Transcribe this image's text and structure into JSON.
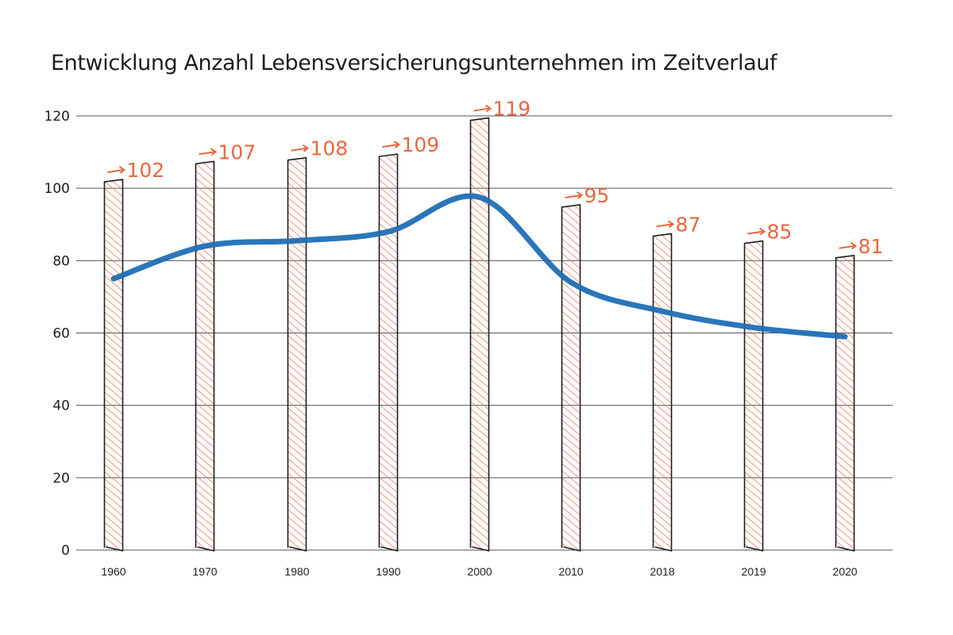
{
  "colors": {
    "bar_hatch": "#ee7a5c",
    "bar_outline": "#1e1e1e",
    "line": "#1f6fb5",
    "label": "#e8683f",
    "grid": "#555555"
  },
  "chart_data": {
    "type": "bar",
    "title": "Entwicklung Anzahl Lebensversicherungsunternehmen im Zeitverlauf",
    "categories": [
      "1960",
      "1970",
      "1980",
      "1990",
      "2000",
      "2010",
      "2018",
      "2019",
      "2020"
    ],
    "series": [
      {
        "values": [
          102,
          107,
          108,
          109,
          119,
          95,
          87,
          85,
          81
        ]
      }
    ],
    "data_labels": [
      "102",
      "107",
      "108",
      "109",
      "119",
      "95",
      "87",
      "85",
      "81"
    ],
    "trend_line_values": [
      75,
      84,
      85.5,
      88,
      97.5,
      74,
      66,
      61.5,
      59
    ],
    "ylim": [
      0,
      120
    ],
    "yticks": [
      "0",
      "20",
      "40",
      "60",
      "80",
      "100",
      "120"
    ],
    "grid": true,
    "legend": "none"
  }
}
